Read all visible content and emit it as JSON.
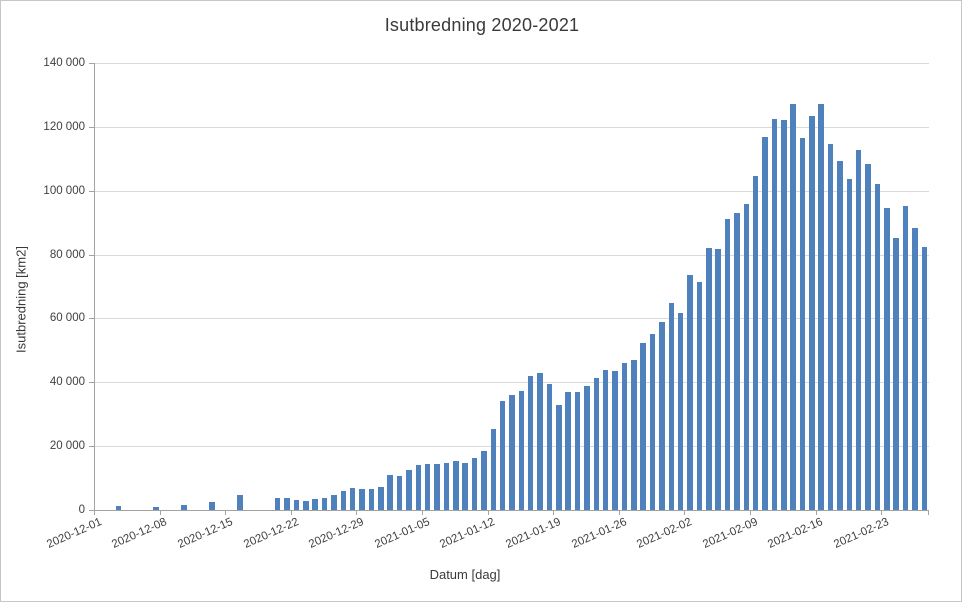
{
  "colors": {
    "bar": "#4F81BD",
    "gridline": "#D9D9D9",
    "axis_line": "#A3A3A3",
    "text": "#404040",
    "chart_border": "#C6C6C6"
  },
  "chart_data": {
    "type": "bar",
    "title": "Isutbredning 2020-2021",
    "xlabel": "Datum [dag]",
    "ylabel": "Isutbredning [km2]",
    "ylim": [
      0,
      140000
    ],
    "y_tick_step": 20000,
    "y_tick_labels": [
      "0",
      "20 000",
      "40 000",
      "60 000",
      "80 000",
      "100 000",
      "120 000",
      "140 000"
    ],
    "grid": "horizontal",
    "legend": "none",
    "x_label_interval_days": 7,
    "x_tick_labels": [
      "2020-12-01",
      "2020-12-08",
      "2020-12-15",
      "2020-12-22",
      "2020-12-29",
      "2021-01-05",
      "2021-01-12",
      "2021-01-19",
      "2021-01-26",
      "2021-02-02",
      "2021-02-09",
      "2021-02-16",
      "2021-02-23"
    ],
    "categories": [
      "2020-12-01",
      "2020-12-02",
      "2020-12-03",
      "2020-12-04",
      "2020-12-05",
      "2020-12-06",
      "2020-12-07",
      "2020-12-08",
      "2020-12-09",
      "2020-12-10",
      "2020-12-11",
      "2020-12-12",
      "2020-12-13",
      "2020-12-14",
      "2020-12-15",
      "2020-12-16",
      "2020-12-17",
      "2020-12-18",
      "2020-12-19",
      "2020-12-20",
      "2020-12-21",
      "2020-12-22",
      "2020-12-23",
      "2020-12-24",
      "2020-12-25",
      "2020-12-26",
      "2020-12-27",
      "2020-12-28",
      "2020-12-29",
      "2020-12-30",
      "2020-12-31",
      "2021-01-01",
      "2021-01-02",
      "2021-01-03",
      "2021-01-04",
      "2021-01-05",
      "2021-01-06",
      "2021-01-07",
      "2021-01-08",
      "2021-01-09",
      "2021-01-10",
      "2021-01-11",
      "2021-01-12",
      "2021-01-13",
      "2021-01-14",
      "2021-01-15",
      "2021-01-16",
      "2021-01-17",
      "2021-01-18",
      "2021-01-19",
      "2021-01-20",
      "2021-01-21",
      "2021-01-22",
      "2021-01-23",
      "2021-01-24",
      "2021-01-25",
      "2021-01-26",
      "2021-01-27",
      "2021-01-28",
      "2021-01-29",
      "2021-01-30",
      "2021-01-31",
      "2021-02-01",
      "2021-02-02",
      "2021-02-03",
      "2021-02-04",
      "2021-02-05",
      "2021-02-06",
      "2021-02-07",
      "2021-02-08",
      "2021-02-09",
      "2021-02-10",
      "2021-02-11",
      "2021-02-12",
      "2021-02-13",
      "2021-02-14",
      "2021-02-15",
      "2021-02-16",
      "2021-02-17",
      "2021-02-18",
      "2021-02-19",
      "2021-02-20",
      "2021-02-21",
      "2021-02-22",
      "2021-02-23",
      "2021-02-24",
      "2021-02-25",
      "2021-02-26",
      "2021-02-27"
    ],
    "values": [
      0,
      0,
      1200,
      0,
      0,
      0,
      800,
      0,
      0,
      1500,
      0,
      0,
      2500,
      0,
      0,
      4700,
      0,
      0,
      0,
      3700,
      3800,
      3100,
      2800,
      3400,
      3800,
      4700,
      5900,
      6900,
      6600,
      6500,
      7200,
      10900,
      10600,
      12400,
      14200,
      14500,
      14400,
      14800,
      15200,
      14700,
      16400,
      18600,
      25300,
      34300,
      36100,
      37300,
      42100,
      42800,
      39400,
      33000,
      37000,
      36900,
      38900,
      41300,
      43900,
      43400,
      46200,
      47000,
      52200,
      55000,
      59000,
      64800,
      61600,
      73700,
      71300,
      82200,
      81800,
      91100,
      93000,
      95900,
      104700,
      116800,
      122500,
      122300,
      127200,
      116400,
      123400,
      127200,
      114500,
      109200,
      103600,
      112800,
      108400,
      102100,
      94700,
      85300,
      95300,
      88300,
      82500
    ]
  }
}
